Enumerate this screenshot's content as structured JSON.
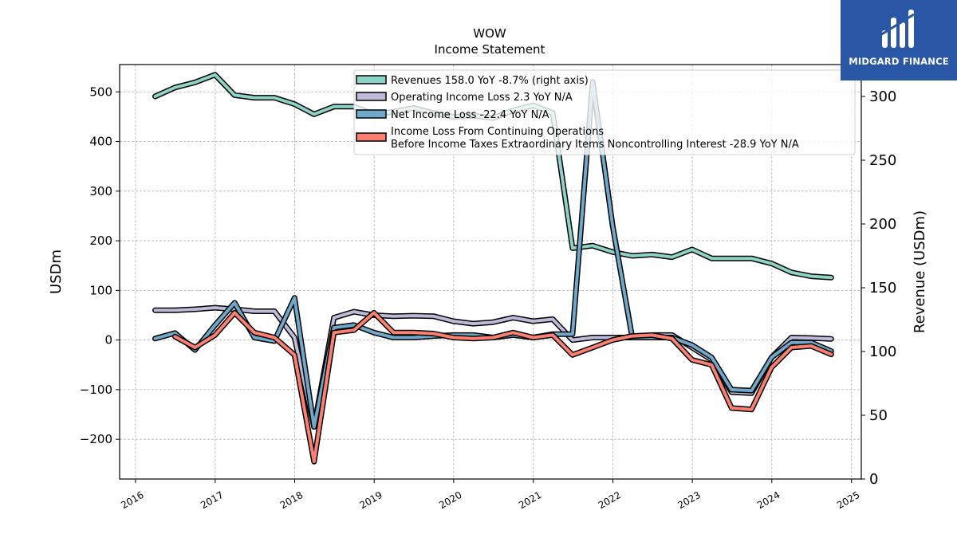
{
  "header": {
    "title": "WOW",
    "subtitle": "Income Statement"
  },
  "logo": {
    "text": "MIDGARD FINANCE",
    "background": "#2a56a6",
    "icon": "midgard-bars-logo-icon"
  },
  "chart_data": {
    "type": "line",
    "grid": true,
    "legend_position": "top-right",
    "ylabel_left": "USDm",
    "ylabel_right": "Revenue (USDm)",
    "x_ticks": [
      "2016",
      "2017",
      "2018",
      "2019",
      "2020",
      "2021",
      "2022",
      "2023",
      "2024",
      "2025"
    ],
    "y_left_ticks": [
      "−200",
      "−100",
      "0",
      "100",
      "200",
      "300",
      "400",
      "500"
    ],
    "y_right_ticks": [
      "0",
      "50",
      "100",
      "150",
      "200",
      "250",
      "300"
    ],
    "y_left_range": [
      -280,
      555
    ],
    "y_right_range": [
      0,
      325
    ],
    "x_range": [
      "2015-10-20",
      "2025-02-15"
    ],
    "series": [
      {
        "name": "Revenues  158.0 YoY -8.7% (right axis)",
        "axis": "right",
        "color": "#8dd3c7",
        "points": [
          [
            "2016-03-31",
            300
          ],
          [
            "2016-06-30",
            307
          ],
          [
            "2016-09-30",
            311
          ],
          [
            "2016-12-31",
            317
          ],
          [
            "2017-03-31",
            301
          ],
          [
            "2017-06-30",
            299
          ],
          [
            "2017-09-30",
            299
          ],
          [
            "2017-12-31",
            294
          ],
          [
            "2018-03-31",
            286
          ],
          [
            "2018-06-30",
            292
          ],
          [
            "2018-09-30",
            292
          ],
          [
            "2018-12-31",
            286
          ],
          [
            "2019-03-31",
            288
          ],
          [
            "2019-06-30",
            291
          ],
          [
            "2019-09-30",
            287
          ],
          [
            "2019-12-31",
            284
          ],
          [
            "2020-03-31",
            285
          ],
          [
            "2020-06-30",
            283
          ],
          [
            "2020-09-30",
            289
          ],
          [
            "2020-12-31",
            293
          ],
          [
            "2021-03-31",
            287
          ],
          [
            "2021-06-30",
            181
          ],
          [
            "2021-09-30",
            183
          ],
          [
            "2021-12-31",
            178
          ],
          [
            "2022-03-31",
            175
          ],
          [
            "2022-06-30",
            176
          ],
          [
            "2022-09-30",
            174
          ],
          [
            "2022-12-31",
            180
          ],
          [
            "2023-03-31",
            173
          ],
          [
            "2023-06-30",
            173
          ],
          [
            "2023-09-30",
            173
          ],
          [
            "2023-12-31",
            169
          ],
          [
            "2024-03-31",
            162
          ],
          [
            "2024-06-30",
            159
          ],
          [
            "2024-09-30",
            158
          ]
        ]
      },
      {
        "name": "Operating Income Loss  2.3 YoY N/A",
        "axis": "left",
        "color": "#bebada",
        "points": [
          [
            "2016-03-31",
            60
          ],
          [
            "2016-06-30",
            60
          ],
          [
            "2016-09-30",
            62
          ],
          [
            "2016-12-31",
            65
          ],
          [
            "2017-03-31",
            62
          ],
          [
            "2017-06-30",
            58
          ],
          [
            "2017-09-30",
            58
          ],
          [
            "2017-12-31",
            5
          ],
          [
            "2018-03-31",
            -175
          ],
          [
            "2018-06-30",
            45
          ],
          [
            "2018-09-30",
            57
          ],
          [
            "2018-12-31",
            50
          ],
          [
            "2019-03-31",
            48
          ],
          [
            "2019-06-30",
            49
          ],
          [
            "2019-09-30",
            48
          ],
          [
            "2019-12-31",
            38
          ],
          [
            "2020-03-31",
            33
          ],
          [
            "2020-06-30",
            36
          ],
          [
            "2020-09-30",
            45
          ],
          [
            "2020-12-31",
            38
          ],
          [
            "2021-03-31",
            42
          ],
          [
            "2021-06-30",
            0
          ],
          [
            "2021-09-30",
            5
          ],
          [
            "2021-12-31",
            5
          ],
          [
            "2022-03-31",
            5
          ],
          [
            "2022-06-30",
            10
          ],
          [
            "2022-09-30",
            10
          ],
          [
            "2022-12-31",
            -15
          ],
          [
            "2023-03-31",
            -40
          ],
          [
            "2023-06-30",
            -105
          ],
          [
            "2023-09-30",
            -107
          ],
          [
            "2023-12-31",
            -35
          ],
          [
            "2024-03-31",
            5
          ],
          [
            "2024-06-30",
            4
          ],
          [
            "2024-09-30",
            2.3
          ]
        ]
      },
      {
        "name": "Net Income Loss  -22.4 YoY N/A",
        "axis": "left",
        "color": "#6fa8c9",
        "points": [
          [
            "2016-03-31",
            3
          ],
          [
            "2016-06-30",
            14
          ],
          [
            "2016-09-30",
            -20
          ],
          [
            "2016-12-31",
            30
          ],
          [
            "2017-03-31",
            75
          ],
          [
            "2017-06-30",
            5
          ],
          [
            "2017-09-30",
            -2
          ],
          [
            "2017-12-31",
            85
          ],
          [
            "2018-03-31",
            -175
          ],
          [
            "2018-06-30",
            25
          ],
          [
            "2018-09-30",
            30
          ],
          [
            "2018-12-31",
            15
          ],
          [
            "2019-03-31",
            5
          ],
          [
            "2019-06-30",
            5
          ],
          [
            "2019-09-30",
            8
          ],
          [
            "2019-12-31",
            10
          ],
          [
            "2020-03-31",
            10
          ],
          [
            "2020-06-30",
            5
          ],
          [
            "2020-09-30",
            10
          ],
          [
            "2020-12-31",
            5
          ],
          [
            "2021-03-31",
            12
          ],
          [
            "2021-06-30",
            12
          ],
          [
            "2021-09-30",
            520
          ],
          [
            "2021-12-31",
            230
          ],
          [
            "2022-03-31",
            5
          ],
          [
            "2022-06-30",
            5
          ],
          [
            "2022-09-30",
            5
          ],
          [
            "2022-12-31",
            -10
          ],
          [
            "2023-03-31",
            -35
          ],
          [
            "2023-06-30",
            -100
          ],
          [
            "2023-09-30",
            -102
          ],
          [
            "2023-12-31",
            -35
          ],
          [
            "2024-03-31",
            -5
          ],
          [
            "2024-06-30",
            -5
          ],
          [
            "2024-09-30",
            -22.4
          ]
        ]
      },
      {
        "name": "Income Loss From Continuing Operations\nBefore Income Taxes Extraordinary Items Noncontrolling Interest  -28.9 YoY N/A",
        "axis": "left",
        "color": "#fb8072",
        "points": [
          [
            "2016-06-30",
            7
          ],
          [
            "2016-09-30",
            -15
          ],
          [
            "2016-12-31",
            10
          ],
          [
            "2017-03-31",
            55
          ],
          [
            "2017-06-30",
            15
          ],
          [
            "2017-09-30",
            5
          ],
          [
            "2017-12-31",
            -30
          ],
          [
            "2018-03-31",
            -245
          ],
          [
            "2018-06-30",
            15
          ],
          [
            "2018-09-30",
            20
          ],
          [
            "2018-12-31",
            55
          ],
          [
            "2019-03-31",
            15
          ],
          [
            "2019-06-30",
            15
          ],
          [
            "2019-09-30",
            13
          ],
          [
            "2019-12-31",
            5
          ],
          [
            "2020-03-31",
            3
          ],
          [
            "2020-06-30",
            5
          ],
          [
            "2020-09-30",
            15
          ],
          [
            "2020-12-31",
            5
          ],
          [
            "2021-03-31",
            10
          ],
          [
            "2021-06-30",
            -30
          ],
          [
            "2021-09-30",
            -15
          ],
          [
            "2021-12-31",
            0
          ],
          [
            "2022-03-31",
            8
          ],
          [
            "2022-06-30",
            10
          ],
          [
            "2022-09-30",
            3
          ],
          [
            "2022-12-31",
            -40
          ],
          [
            "2023-03-31",
            -50
          ],
          [
            "2023-06-30",
            -137
          ],
          [
            "2023-09-30",
            -140
          ],
          [
            "2023-12-31",
            -55
          ],
          [
            "2024-03-31",
            -15
          ],
          [
            "2024-06-30",
            -12
          ],
          [
            "2024-09-30",
            -28.9
          ]
        ]
      }
    ]
  }
}
